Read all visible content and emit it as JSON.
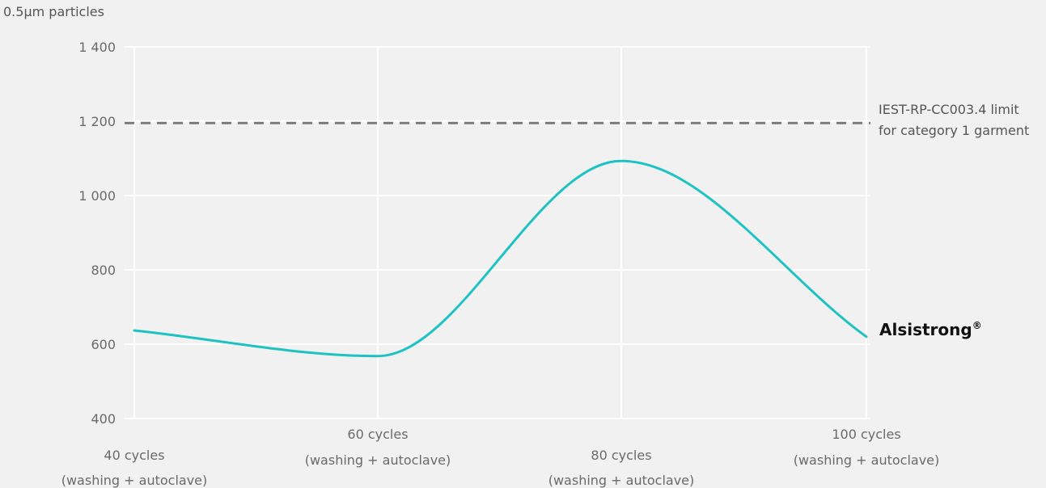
{
  "chart_data": {
    "type": "line",
    "ylabel": "0.5µm particles",
    "ylim": [
      400,
      1400
    ],
    "yticks": [
      400,
      600,
      800,
      1000,
      1200,
      1400
    ],
    "ytick_labels": [
      "400",
      "600",
      "800",
      "1 000",
      "1 200",
      "1 400"
    ],
    "categories": [
      {
        "name": "40 cycles",
        "sub": "(washing + autoclave)"
      },
      {
        "name": "60 cycles",
        "sub": "(washing + autoclave)"
      },
      {
        "name": "80 cycles",
        "sub": "(washing + autoclave)"
      },
      {
        "name": "100 cycles",
        "sub": "(washing + autoclave)"
      }
    ],
    "series": [
      {
        "name": "Alsistrong",
        "name_suffix": "®",
        "color": "#1fc2c2",
        "values": [
          637,
          568,
          1093,
          620
        ]
      }
    ],
    "reference_line": {
      "value": 1195,
      "label_lines": [
        "IEST-RP-CC003.4 limit",
        "for category 1 garment"
      ],
      "color": "#7a7a7a",
      "style": "dashed"
    },
    "grid": true,
    "grid_color": "#ffffff",
    "background": "#f1f1f1"
  }
}
